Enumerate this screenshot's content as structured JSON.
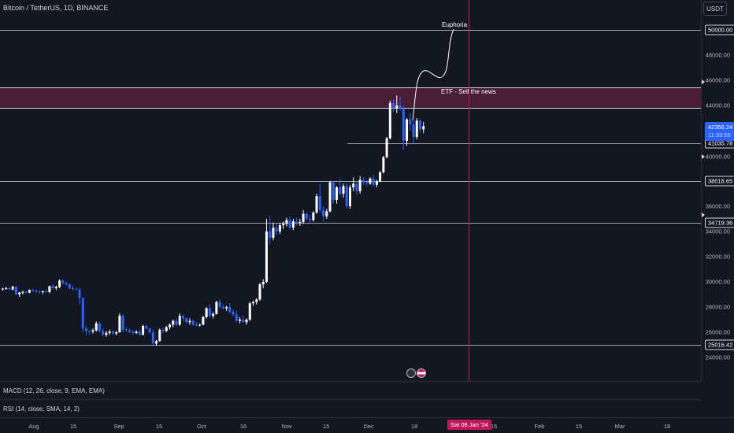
{
  "header": {
    "symbol_title": "Bitcoin / TetherUS, 1D, BINANCE",
    "currency": "USDT"
  },
  "price_axis": {
    "ticks": [
      "50000.00",
      "48000.00",
      "46000.00",
      "44000.00",
      "40000.00",
      "36000.00",
      "34000.00",
      "32000.00",
      "30000.00",
      "28000.00",
      "26000.00",
      "24000.00"
    ]
  },
  "levels": {
    "top": "50000.00",
    "zone_top": "45400.00",
    "zone_bottom": "43700.00",
    "l1": "41035.78",
    "l2": "38018.65",
    "l3": "34719.36",
    "l4": "25016.42"
  },
  "live_price": {
    "value": "42356.24",
    "countdown": "11:39:55"
  },
  "annotations": {
    "euphoria": "Euphoria",
    "etf": "ETF - Sell the news"
  },
  "indicators": {
    "macd": "MACD (12, 26, close, 9, EMA, EMA)",
    "rsi": "RSI (14, close, SMA, 14, 2)"
  },
  "time_axis": {
    "ticks": [
      "Aug",
      "15",
      "Sep",
      "15",
      "Oct",
      "16",
      "Nov",
      "15",
      "Dec",
      "18",
      "15",
      "Feb",
      "15",
      "Mar",
      "18"
    ],
    "highlight": "Sat 06 Jan '24"
  },
  "colors": {
    "background": "#131722",
    "candle_up": "#ffffff",
    "candle_down": "#2962ff",
    "marker": "#c2185b",
    "zone": "#b02758"
  },
  "chart_data": {
    "type": "candlestick",
    "symbol": "BTCUSDT",
    "interval": "1D",
    "ylim": [
      23000,
      53000
    ],
    "candles": [
      [
        29420,
        29520,
        29300,
        29460
      ],
      [
        29460,
        29600,
        29380,
        29490
      ],
      [
        29490,
        29590,
        29350,
        29400
      ],
      [
        29400,
        29700,
        29330,
        29620
      ],
      [
        29620,
        29650,
        28950,
        29000
      ],
      [
        29000,
        29200,
        28800,
        29150
      ],
      [
        29150,
        29300,
        29000,
        29200
      ],
      [
        29200,
        29300,
        29100,
        29150
      ],
      [
        29150,
        29400,
        29100,
        29350
      ],
      [
        29350,
        29450,
        29200,
        29280
      ],
      [
        29280,
        29400,
        29150,
        29230
      ],
      [
        29230,
        29330,
        29100,
        29180
      ],
      [
        29180,
        29300,
        29050,
        29250
      ],
      [
        29250,
        29350,
        29150,
        29200
      ],
      [
        29200,
        29700,
        29100,
        29650
      ],
      [
        29650,
        29800,
        29400,
        29500
      ],
      [
        29500,
        29700,
        29350,
        29600
      ],
      [
        29600,
        30200,
        29500,
        30100
      ],
      [
        30100,
        30200,
        29800,
        29900
      ],
      [
        29900,
        30000,
        29700,
        29800
      ],
      [
        29800,
        29900,
        29400,
        29500
      ],
      [
        29500,
        29700,
        29300,
        29450
      ],
      [
        29450,
        29550,
        29300,
        29400
      ],
      [
        29400,
        29500,
        28200,
        28700
      ],
      [
        28700,
        28800,
        26000,
        26300
      ],
      [
        26300,
        26500,
        25800,
        26100
      ],
      [
        26100,
        26200,
        25800,
        26050
      ],
      [
        26050,
        26300,
        25900,
        26150
      ],
      [
        26150,
        26850,
        26050,
        26700
      ],
      [
        26700,
        26800,
        26000,
        26100
      ],
      [
        26100,
        26300,
        25700,
        25800
      ],
      [
        25800,
        26100,
        25650,
        25950
      ],
      [
        25950,
        26200,
        25800,
        26050
      ],
      [
        26050,
        26150,
        25800,
        25900
      ],
      [
        25900,
        26100,
        25750,
        26000
      ],
      [
        26000,
        27500,
        25950,
        27300
      ],
      [
        27300,
        27400,
        26000,
        26200
      ],
      [
        26200,
        26400,
        26050,
        26150
      ],
      [
        26150,
        26300,
        25950,
        26000
      ],
      [
        26000,
        26200,
        25800,
        25950
      ],
      [
        25950,
        26150,
        25850,
        26050
      ],
      [
        26050,
        26200,
        25700,
        25800
      ],
      [
        25800,
        26600,
        25750,
        26500
      ],
      [
        26500,
        26600,
        26200,
        26300
      ],
      [
        26300,
        26400,
        25900,
        26000
      ],
      [
        26000,
        26200,
        24900,
        25100
      ],
      [
        25100,
        25400,
        24900,
        25300
      ],
      [
        25300,
        26300,
        25250,
        26200
      ],
      [
        26200,
        26350,
        25900,
        26100
      ],
      [
        26100,
        26500,
        26000,
        26400
      ],
      [
        26400,
        26700,
        26200,
        26600
      ],
      [
        26600,
        27000,
        26400,
        26900
      ],
      [
        26900,
        27100,
        26500,
        26600
      ],
      [
        26600,
        27500,
        26500,
        27300
      ],
      [
        27300,
        27400,
        26900,
        27100
      ],
      [
        27100,
        27200,
        26700,
        26800
      ],
      [
        26800,
        27100,
        26600,
        26900
      ],
      [
        26900,
        27000,
        26500,
        26600
      ],
      [
        26600,
        26800,
        26450,
        26550
      ],
      [
        26550,
        26700,
        26450,
        26600
      ],
      [
        26600,
        27300,
        26550,
        27200
      ],
      [
        27200,
        28000,
        27100,
        27900
      ],
      [
        27900,
        28200,
        27200,
        27300
      ],
      [
        27300,
        27600,
        27100,
        27450
      ],
      [
        27450,
        28500,
        27400,
        28400
      ],
      [
        28400,
        28600,
        27900,
        28000
      ],
      [
        28000,
        28200,
        27800,
        27900
      ],
      [
        27900,
        28100,
        27700,
        28000
      ],
      [
        28000,
        28300,
        27500,
        27600
      ],
      [
        27600,
        27800,
        27300,
        27400
      ],
      [
        27400,
        27700,
        26800,
        26900
      ],
      [
        26900,
        27200,
        26700,
        27000
      ],
      [
        27000,
        27300,
        26750,
        26800
      ],
      [
        26800,
        27100,
        26600,
        27000
      ],
      [
        27000,
        28400,
        26900,
        28300
      ],
      [
        28300,
        28500,
        28100,
        28400
      ],
      [
        28400,
        28700,
        28200,
        28600
      ],
      [
        28600,
        29900,
        28500,
        29800
      ],
      [
        29800,
        30200,
        29500,
        30000
      ],
      [
        30000,
        35000,
        29900,
        34000
      ],
      [
        34000,
        35200,
        33000,
        33500
      ],
      [
        33500,
        34700,
        33300,
        34300
      ],
      [
        34300,
        34600,
        33700,
        34000
      ],
      [
        34000,
        34700,
        33800,
        34500
      ],
      [
        34500,
        34800,
        34200,
        34600
      ],
      [
        34600,
        35100,
        34400,
        34900
      ],
      [
        34900,
        35200,
        34200,
        34300
      ],
      [
        34300,
        35000,
        34100,
        34800
      ],
      [
        34800,
        35100,
        34500,
        34700
      ],
      [
        34700,
        35000,
        34450,
        34750
      ],
      [
        34750,
        35700,
        34600,
        35400
      ],
      [
        35400,
        35500,
        34900,
        35000
      ],
      [
        35000,
        35300,
        34700,
        34900
      ],
      [
        34900,
        35600,
        34800,
        35500
      ],
      [
        35500,
        37000,
        35400,
        36800
      ],
      [
        36800,
        37800,
        35500,
        35700
      ],
      [
        35700,
        36000,
        34800,
        35200
      ],
      [
        35200,
        35800,
        35000,
        35600
      ],
      [
        35600,
        38000,
        35500,
        37900
      ],
      [
        37900,
        38000,
        36200,
        36500
      ],
      [
        36500,
        37600,
        36200,
        37500
      ],
      [
        37500,
        38200,
        36800,
        37000
      ],
      [
        37000,
        37800,
        36700,
        37600
      ],
      [
        37600,
        37800,
        35800,
        36000
      ],
      [
        36000,
        37700,
        35800,
        37500
      ],
      [
        37500,
        38300,
        37200,
        37800
      ],
      [
        37800,
        38000,
        36900,
        37200
      ],
      [
        37200,
        38400,
        37000,
        38100
      ],
      [
        38100,
        38300,
        37700,
        37900
      ],
      [
        37900,
        38100,
        37600,
        37800
      ],
      [
        37800,
        38300,
        37700,
        38200
      ],
      [
        38200,
        38500,
        37600,
        37700
      ],
      [
        37700,
        38100,
        37500,
        38000
      ],
      [
        38000,
        38800,
        37900,
        38700
      ],
      [
        38700,
        40000,
        38600,
        39900
      ],
      [
        39900,
        41500,
        39800,
        41400
      ],
      [
        41400,
        44400,
        41300,
        44200
      ],
      [
        44200,
        44500,
        43500,
        43800
      ],
      [
        43800,
        44800,
        43400,
        44000
      ],
      [
        44000,
        44700,
        43600,
        43700
      ],
      [
        43700,
        44000,
        40500,
        41200
      ],
      [
        41200,
        43000,
        40800,
        42900
      ],
      [
        42900,
        43400,
        42000,
        42500
      ],
      [
        42500,
        42800,
        40900,
        41500
      ],
      [
        41500,
        43000,
        41300,
        42800
      ],
      [
        42800,
        42900,
        41900,
        42100
      ],
      [
        42100,
        42700,
        41800,
        42356
      ]
    ]
  }
}
